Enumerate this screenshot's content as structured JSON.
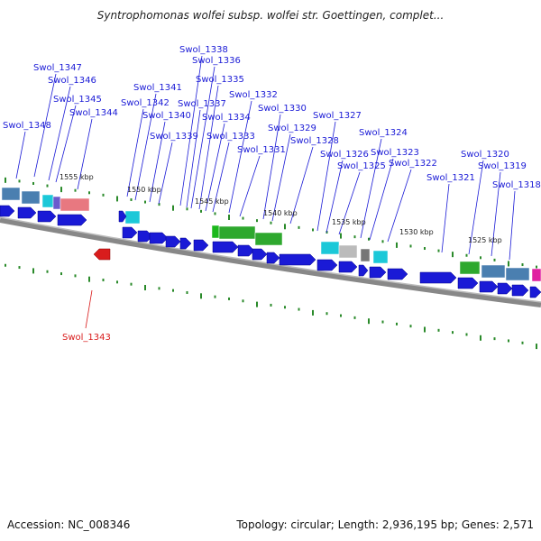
{
  "title": "Syntrophomonas wolfei subsp. wolfei str. Goettingen, complet...",
  "footer": {
    "accession": "Accession: NC_008346",
    "summary": "Topology: circular; Length: 2,936,195 bp; Genes: 2,571"
  },
  "colors": {
    "forward_gene": "#1a1ad6",
    "reverse_gene": "#d91c1c",
    "backbone": "#777777",
    "tick": "#2a8a2a",
    "label": "#1a1ad6"
  },
  "scale_labels": [
    "1555 kbp",
    "1550 kbp",
    "1545 kbp",
    "1540 kbp",
    "1535 kbp",
    "1530 kbp",
    "1525 kbp"
  ],
  "gene_labels": [
    "Swol_1348",
    "Swol_1347",
    "Swol_1346",
    "Swol_1345",
    "Swol_1344",
    "Swol_1342",
    "Swol_1341",
    "Swol_1340",
    "Swol_1339",
    "Swol_1338",
    "Swol_1337",
    "Swol_1336",
    "Swol_1335",
    "Swol_1334",
    "Swol_1333",
    "Swol_1332",
    "Swol_1331",
    "Swol_1330",
    "Swol_1329",
    "Swol_1328",
    "Swol_1327",
    "Swol_1326",
    "Swol_1325",
    "Swol_1324",
    "Swol_1323",
    "Swol_1322",
    "Swol_1321",
    "Swol_1320",
    "Swol_1319",
    "Swol_1318"
  ],
  "reverse_gene_labels": [
    "Swol_1343"
  ]
}
